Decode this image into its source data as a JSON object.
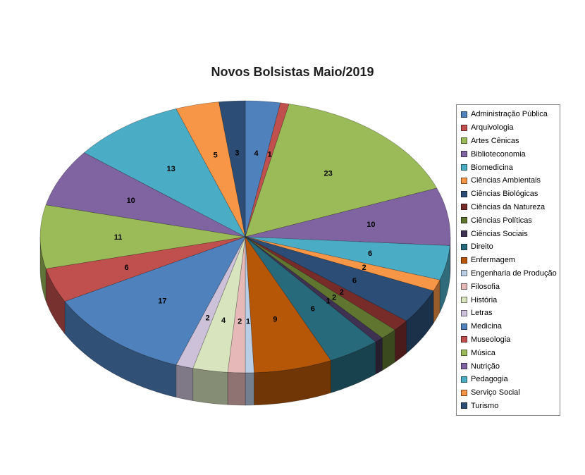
{
  "chart_data": {
    "type": "pie",
    "title": "Novos Bolsistas Maio/2019",
    "style": "3d",
    "start_angle_deg": -90,
    "direction": "clockwise",
    "legend_position": "right",
    "labels_shown": true,
    "total": 146,
    "labels": [
      "Administração Pública",
      "Arquivologia",
      "Artes Cênicas",
      "Biblioteconomia",
      "Biomedicina",
      "Ciências Ambientais",
      "Ciências Biológicas",
      "Ciências da Natureza",
      "Ciências Políticas",
      "Ciências Sociais",
      "Direito",
      "Enfermagem",
      "Engenharia de Produção",
      "Filosofia",
      "História",
      "Letras",
      "Medicina",
      "Museologia",
      "Música",
      "Nutrição",
      "Pedagogia",
      "Serviço Social",
      "Turismo"
    ],
    "values": [
      4,
      1,
      23,
      10,
      6,
      2,
      6,
      2,
      2,
      1,
      6,
      9,
      1,
      2,
      4,
      2,
      17,
      6,
      11,
      10,
      13,
      5,
      3
    ],
    "colors": [
      "#4F81BD",
      "#C0504D",
      "#9BBB59",
      "#8064A2",
      "#4BACC6",
      "#F79646",
      "#2C4D75",
      "#772C2A",
      "#5F7530",
      "#3F3151",
      "#276A7C",
      "#B65708",
      "#B9CDE5",
      "#E6B9B8",
      "#D7E4BD",
      "#CCC1D9",
      "#4F81BD",
      "#C0504D",
      "#9BBB59",
      "#8064A2",
      "#4BACC6",
      "#F79646",
      "#2C4D75"
    ]
  }
}
